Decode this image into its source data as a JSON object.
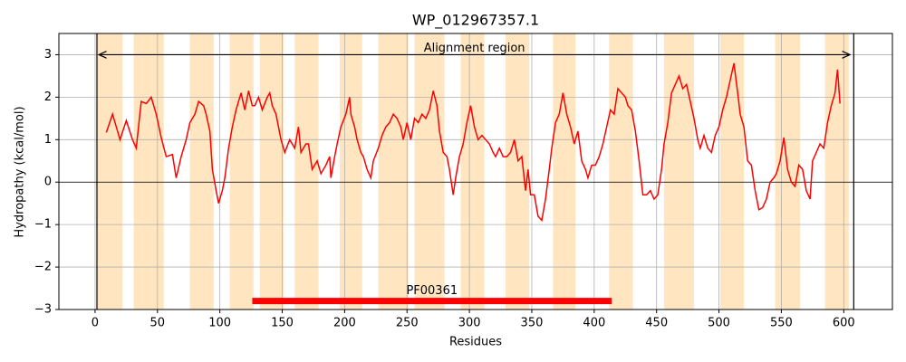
{
  "chart_data": {
    "type": "line",
    "title": "WP_012967357.1",
    "xlabel": "Residues",
    "ylabel": "Hydropathy (kcal/mol)",
    "xlim": [
      -29,
      639
    ],
    "ylim": [
      -3,
      3.5
    ],
    "xticks": [
      0,
      50,
      100,
      150,
      200,
      250,
      300,
      350,
      400,
      450,
      500,
      550,
      600
    ],
    "yticks": [
      {
        "value": -3,
        "label": "−3"
      },
      {
        "value": -2,
        "label": "−2"
      },
      {
        "value": -1,
        "label": "−1"
      },
      0,
      1,
      2,
      3
    ],
    "grid": true,
    "hline": 0,
    "vlines": [
      1.5,
      608
    ],
    "band_color": "#ffe5c0",
    "bands": [
      [
        2,
        22
      ],
      [
        31,
        55
      ],
      [
        76,
        95
      ],
      [
        108,
        127
      ],
      [
        132,
        151
      ],
      [
        160,
        179
      ],
      [
        196,
        214
      ],
      [
        227,
        251
      ],
      [
        256,
        280
      ],
      [
        293,
        312
      ],
      [
        329,
        348
      ],
      [
        367,
        385
      ],
      [
        412,
        431
      ],
      [
        456,
        480
      ],
      [
        501,
        520
      ],
      [
        545,
        565
      ],
      [
        585,
        604
      ]
    ],
    "annotations": [
      {
        "label": "Alignment region",
        "start": 3,
        "end": 605,
        "y": 3,
        "kind": "arrow",
        "color": "#000000"
      },
      {
        "label": "PF00361",
        "start": 126,
        "end": 414,
        "y": -2.8,
        "kind": "bar",
        "color": "#ff0000"
      }
    ],
    "x": [
      9,
      14,
      20,
      25,
      30,
      33,
      37,
      41,
      45,
      49,
      53,
      57,
      62,
      65,
      69,
      73,
      76,
      80,
      83,
      87,
      89,
      92,
      94,
      97,
      99,
      102,
      104,
      107,
      110,
      113,
      117,
      120,
      123,
      126,
      128,
      131,
      134,
      138,
      140,
      142,
      145,
      149,
      152,
      156,
      160,
      163,
      165,
      169,
      171,
      174,
      178,
      181,
      185,
      188,
      189,
      192,
      194,
      197,
      201,
      204,
      205,
      208,
      210,
      213,
      215,
      218,
      221,
      223,
      227,
      230,
      233,
      236,
      239,
      242,
      245,
      247,
      250,
      253,
      256,
      259,
      262,
      265,
      268,
      271,
      274,
      276,
      279,
      282,
      284,
      287,
      289,
      292,
      295,
      298,
      301,
      304,
      307,
      310,
      313,
      316,
      319,
      321,
      324,
      327,
      330,
      333,
      336,
      339,
      342,
      345,
      347,
      349,
      352,
      355,
      358,
      361,
      364,
      366,
      369,
      372,
      375,
      378,
      381,
      384,
      387,
      390,
      393,
      395,
      398,
      401,
      404,
      407,
      410,
      413,
      416,
      419,
      422,
      425,
      427,
      430,
      433,
      436,
      439,
      442,
      445,
      448,
      451,
      454,
      456,
      459,
      462,
      465,
      468,
      471,
      474,
      477,
      480,
      483,
      485,
      488,
      491,
      494,
      497,
      500,
      503,
      506,
      509,
      512,
      515,
      517,
      520,
      523,
      526,
      529,
      532,
      535,
      538,
      541,
      544,
      546,
      549,
      552,
      555,
      558,
      561,
      564,
      567,
      570,
      573,
      575,
      578,
      581,
      584,
      587,
      590,
      593,
      595,
      597
    ],
    "series": [
      {
        "name": "Hydropathy",
        "color": "#ff0000",
        "values": [
          1.17,
          1.6,
          1.0,
          1.45,
          1.0,
          0.8,
          1.9,
          1.85,
          2.0,
          1.6,
          1.05,
          0.6,
          0.65,
          0.1,
          0.6,
          1.0,
          1.4,
          1.6,
          1.9,
          1.8,
          1.6,
          1.2,
          0.3,
          -0.2,
          -0.5,
          -0.2,
          0.1,
          0.8,
          1.3,
          1.7,
          2.1,
          1.7,
          2.15,
          1.8,
          1.8,
          2.0,
          1.7,
          2.0,
          2.1,
          1.8,
          1.6,
          1.0,
          0.7,
          1.0,
          0.8,
          1.3,
          0.7,
          0.9,
          0.9,
          0.3,
          0.5,
          0.2,
          0.4,
          0.6,
          0.1,
          0.6,
          0.9,
          1.3,
          1.6,
          2.0,
          1.6,
          1.3,
          1.0,
          0.7,
          0.6,
          0.3,
          0.1,
          0.5,
          0.8,
          1.1,
          1.3,
          1.4,
          1.6,
          1.5,
          1.3,
          1.0,
          1.4,
          1.0,
          1.5,
          1.4,
          1.6,
          1.5,
          1.7,
          2.15,
          1.8,
          1.2,
          0.7,
          0.6,
          0.3,
          -0.3,
          0.1,
          0.6,
          0.9,
          1.4,
          1.8,
          1.3,
          1.0,
          1.1,
          1.0,
          0.9,
          0.7,
          0.6,
          0.8,
          0.6,
          0.6,
          0.7,
          1.0,
          0.5,
          0.6,
          -0.2,
          0.3,
          -0.3,
          -0.3,
          -0.8,
          -0.9,
          -0.4,
          0.3,
          0.8,
          1.4,
          1.6,
          2.1,
          1.6,
          1.3,
          0.9,
          1.2,
          0.5,
          0.3,
          0.1,
          0.4,
          0.4,
          0.6,
          0.9,
          1.3,
          1.7,
          1.6,
          2.2,
          2.1,
          2.0,
          1.8,
          1.7,
          1.2,
          0.5,
          -0.3,
          -0.3,
          -0.2,
          -0.4,
          -0.3,
          0.3,
          0.9,
          1.4,
          2.1,
          2.3,
          2.5,
          2.2,
          2.3,
          1.9,
          1.5,
          1.0,
          0.8,
          1.1,
          0.8,
          0.7,
          1.1,
          1.3,
          1.7,
          2.0,
          2.4,
          2.8,
          2.1,
          1.6,
          1.3,
          0.5,
          0.4,
          -0.2,
          -0.65,
          -0.6,
          -0.4,
          0.0,
          0.1,
          0.2,
          0.5,
          1.05,
          0.3,
          0.0,
          -0.1,
          0.4,
          0.3,
          -0.2,
          -0.4,
          0.5,
          0.7,
          0.9,
          0.8,
          1.4,
          1.8,
          2.1,
          2.65,
          1.85
        ]
      }
    ]
  }
}
